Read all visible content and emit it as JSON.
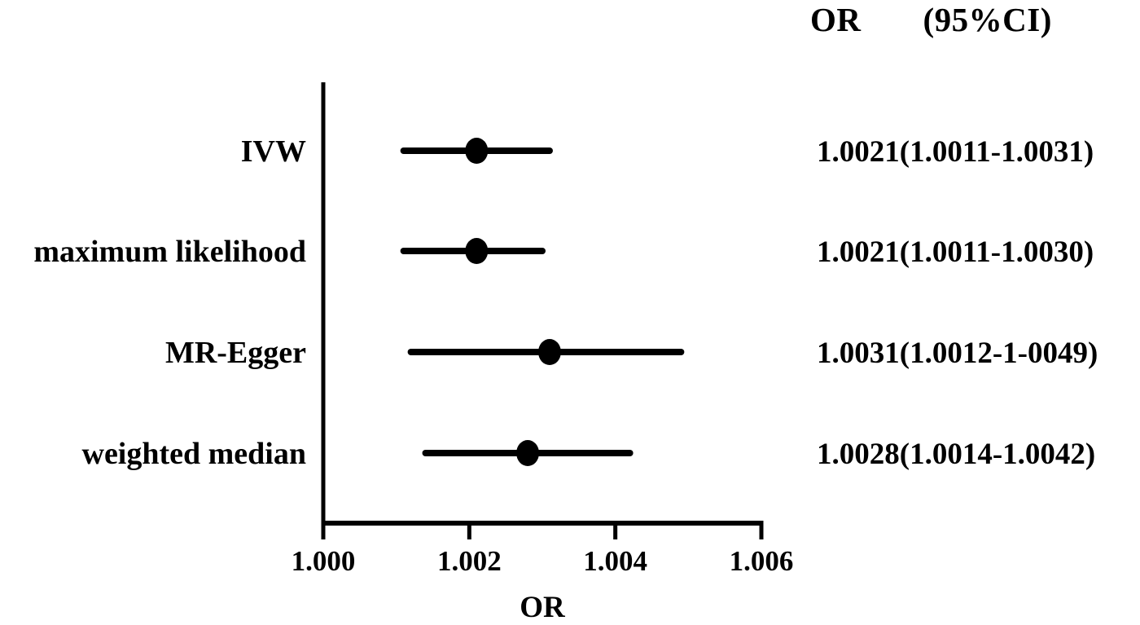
{
  "figure": {
    "background": "#ffffff",
    "ink_color": "#000000"
  },
  "header": {
    "or_label": "OR",
    "ci_label": "(95%CI)"
  },
  "chart_data": {
    "type": "scatter",
    "subtype": "forest-plot",
    "title": "",
    "xlabel": "OR",
    "ylabel": "",
    "xlim": [
      1.0,
      1.006
    ],
    "x_ticks": [
      1.0,
      1.002,
      1.004,
      1.006
    ],
    "x_tick_labels": [
      "1.000",
      "1.002",
      "1.004",
      "1.006"
    ],
    "grid": false,
    "legend": null,
    "column_header": "OR (95%CI)",
    "rows": [
      {
        "label": "IVW",
        "or": 1.0021,
        "ci_low": 1.0011,
        "ci_high": 1.0031,
        "display": "1.0021(1.0011-1.0031)"
      },
      {
        "label": "maximum likelihood",
        "or": 1.0021,
        "ci_low": 1.0011,
        "ci_high": 1.003,
        "display": "1.0021(1.0011-1.0030)"
      },
      {
        "label": "MR-Egger",
        "or": 1.0031,
        "ci_low": 1.0012,
        "ci_high": 1.0049,
        "display": "1.0031(1.0012-1-0049)"
      },
      {
        "label": "weighted median",
        "or": 1.0028,
        "ci_low": 1.0014,
        "ci_high": 1.0042,
        "display": "1.0028(1.0014-1.0042)"
      }
    ]
  }
}
